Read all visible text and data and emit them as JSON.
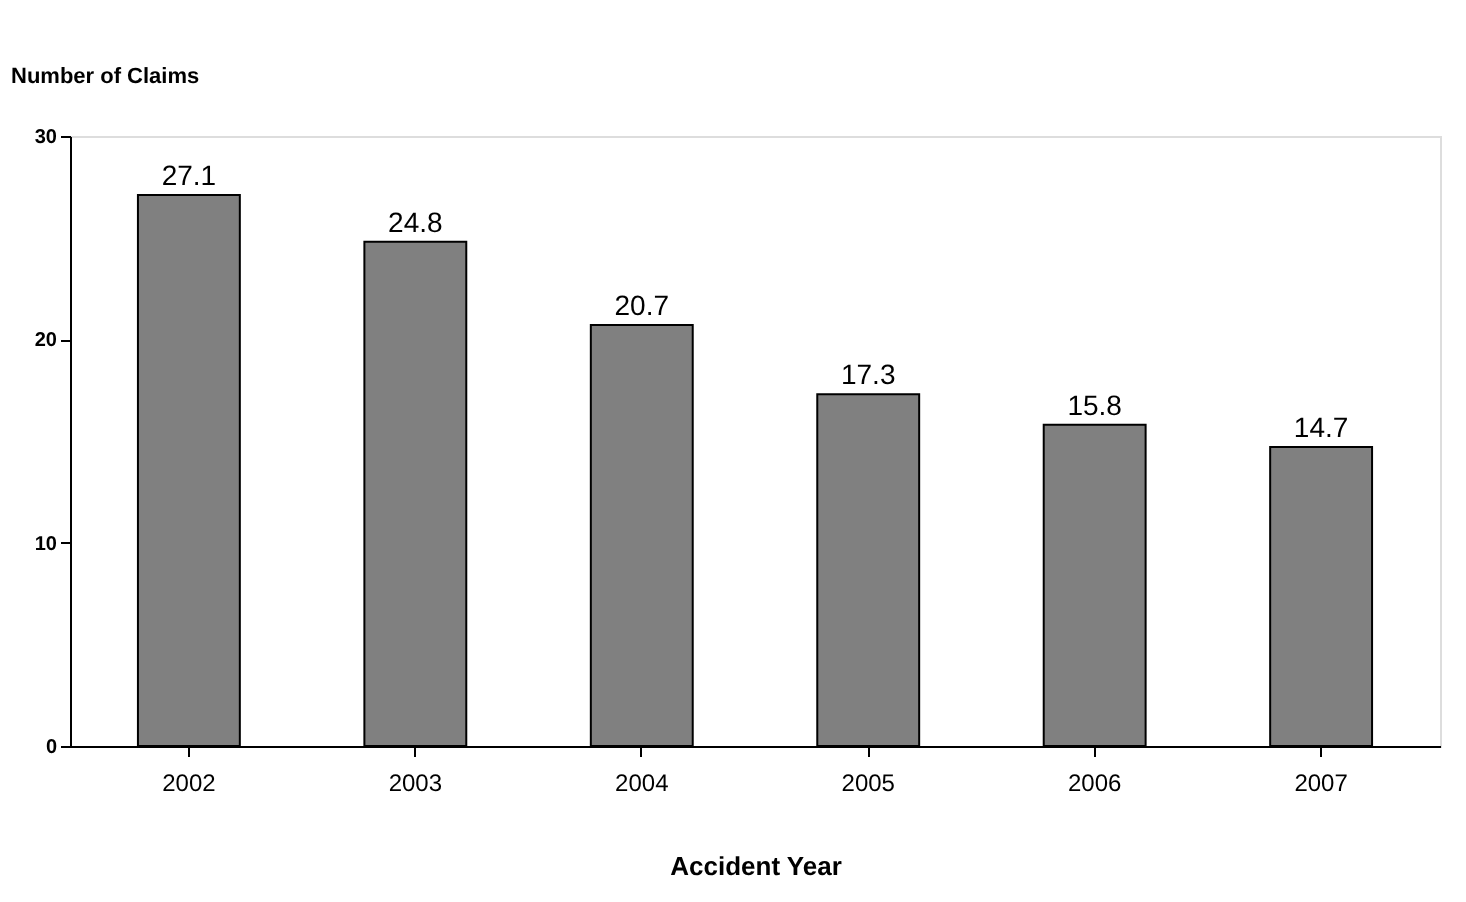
{
  "chart_data": {
    "type": "bar",
    "xlabel": "Accident Year",
    "ylabel": "Number of Claims",
    "categories": [
      "2002",
      "2003",
      "2004",
      "2005",
      "2006",
      "2007"
    ],
    "values": [
      27.1,
      24.8,
      20.7,
      17.3,
      15.8,
      14.7
    ],
    "color": "#808080",
    "ylim": [
      0,
      30
    ],
    "yticks": [
      0,
      10,
      20,
      30
    ],
    "grid": false,
    "data_labels": true
  }
}
